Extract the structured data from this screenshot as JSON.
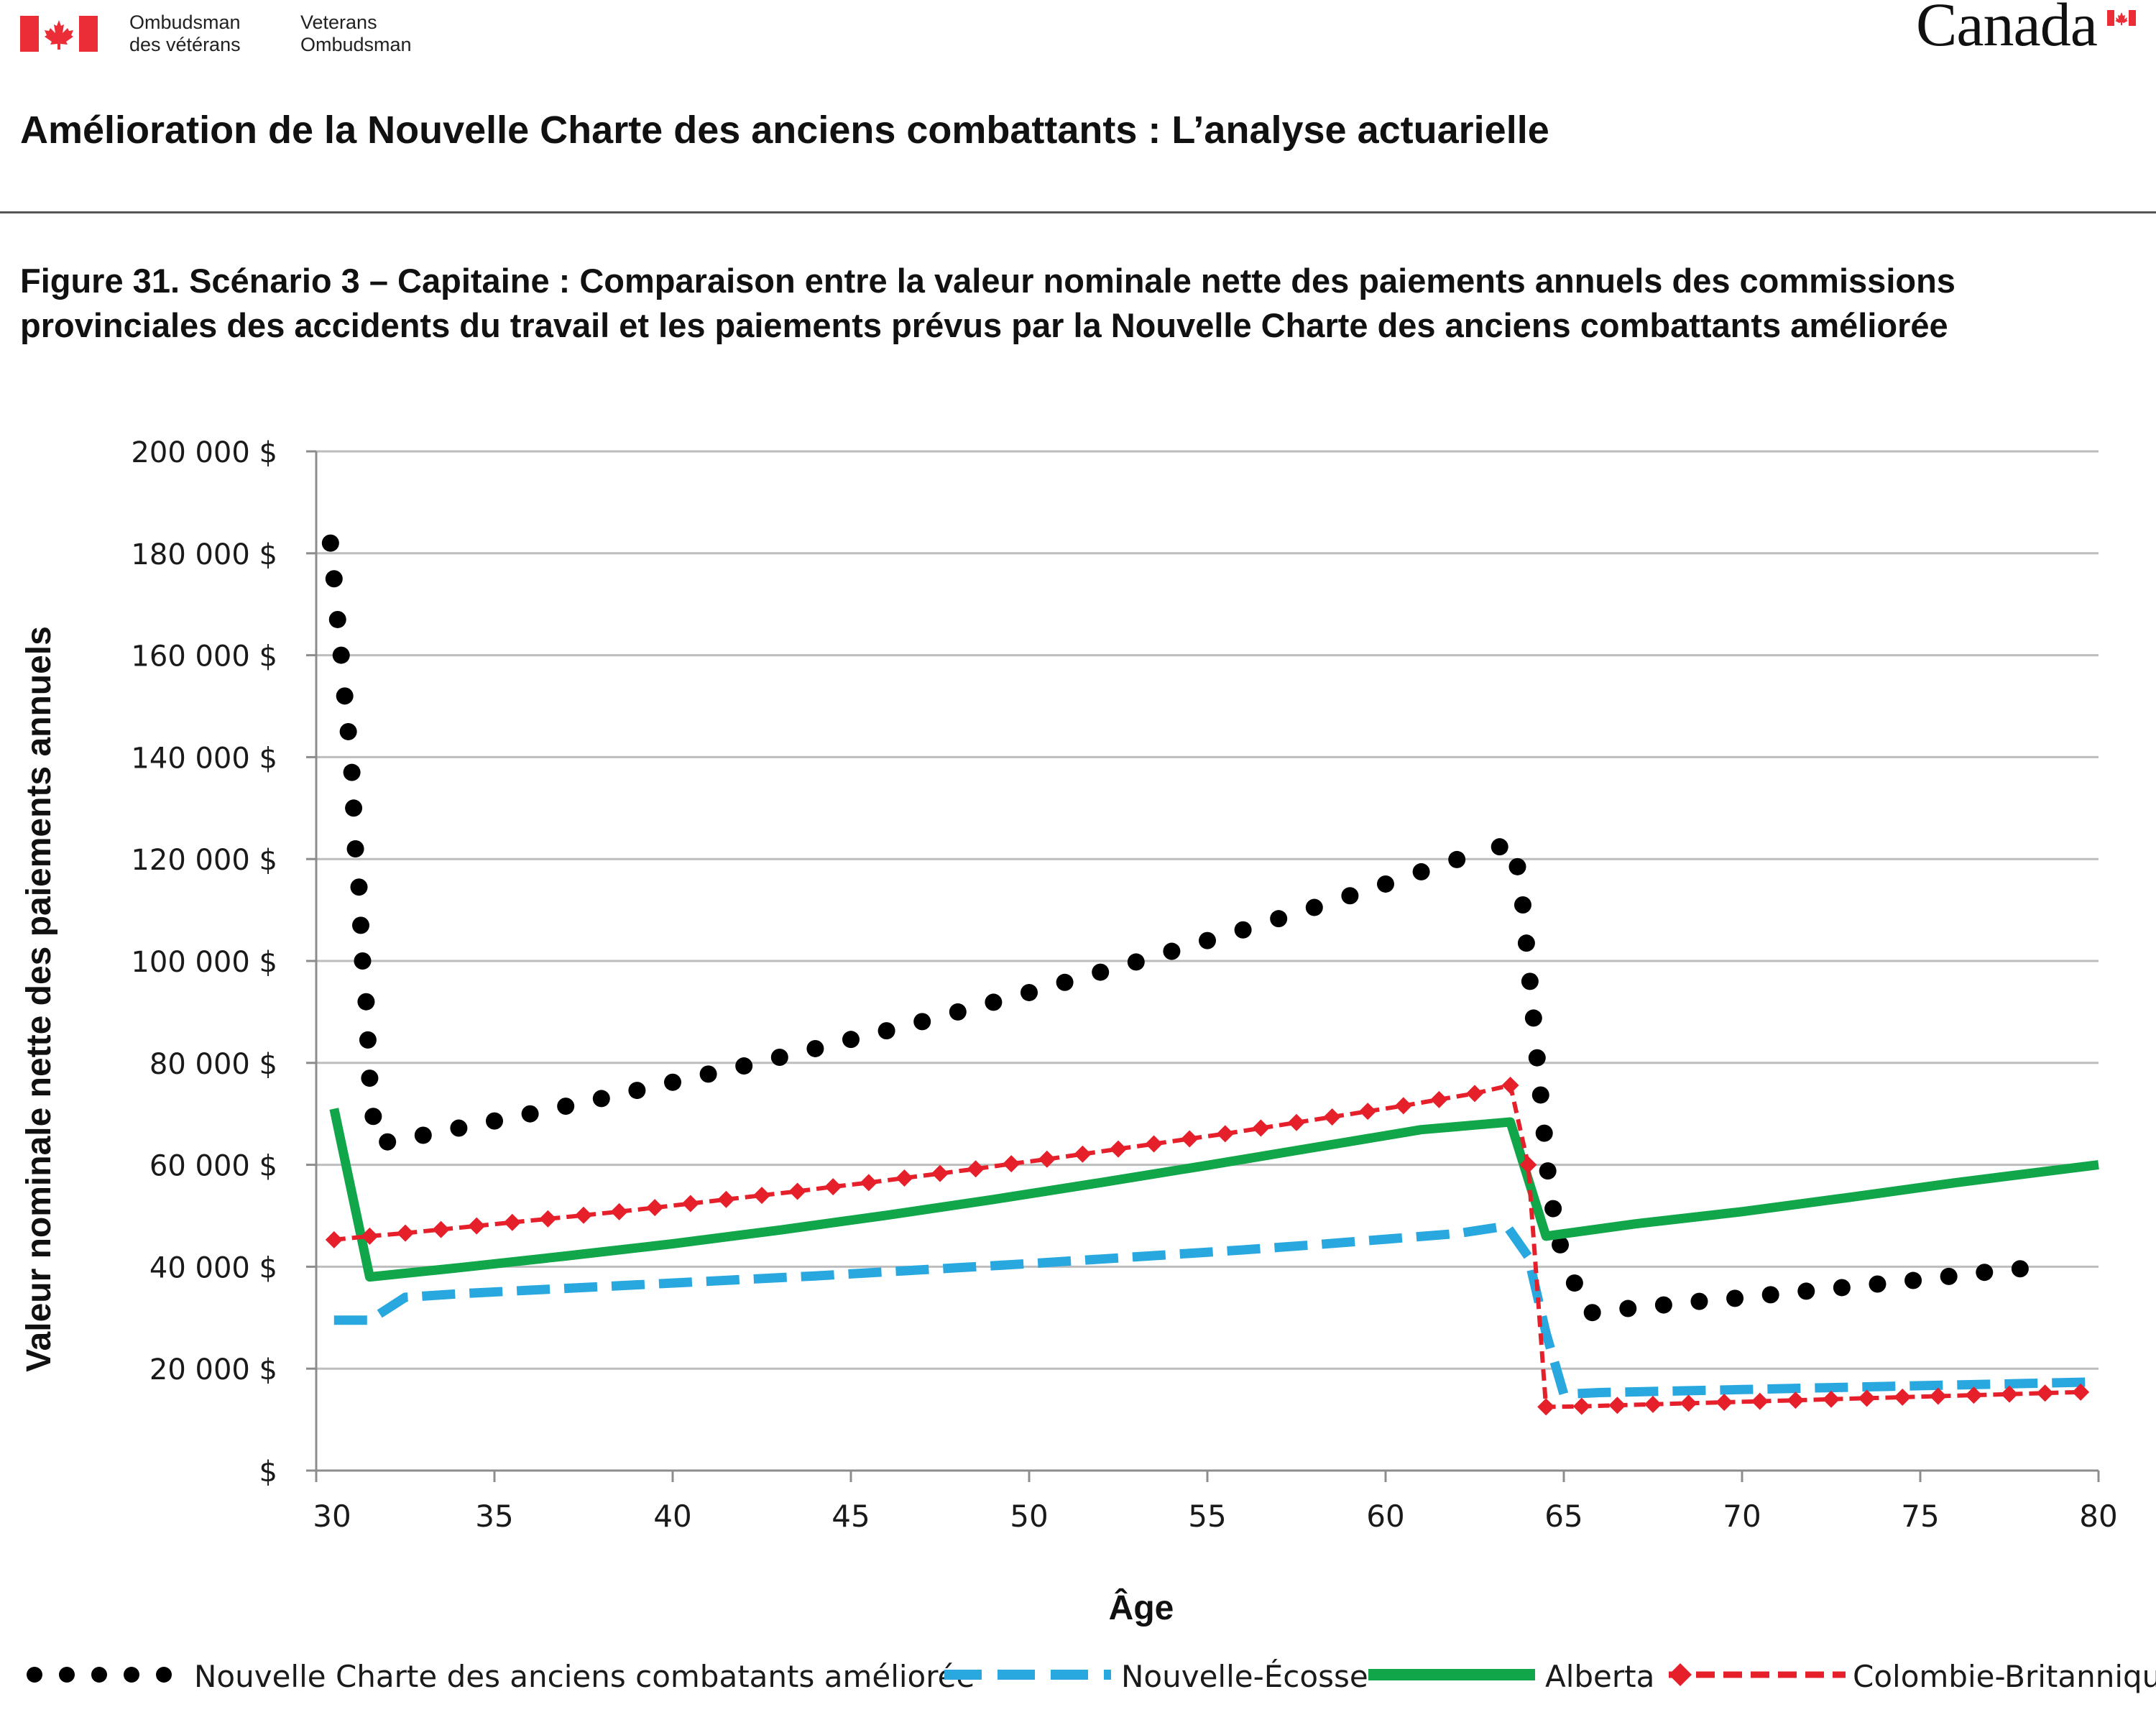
{
  "header": {
    "dept_fr_line1": "Ombudsman",
    "dept_fr_line2": "des vétérans",
    "dept_en_line1": "Veterans",
    "dept_en_line2": "Ombudsman",
    "wordmark": "Canada"
  },
  "document_title": "Amélioration de la Nouvelle Charte des anciens combattants : L’analyse actuarielle",
  "figure_caption": "Figure 31. Scénario 3 – Capitaine : Comparaison entre la valeur nominale nette des paiements annuels des commissions provinciales des accidents du travail et les paiements prévus par la Nouvelle Charte des anciens combattants améliorée",
  "colors": {
    "flag_red": "#eb2d37",
    "grid": "#bdbdbd",
    "axis": "#8c8c8c"
  },
  "chart_data": {
    "type": "line",
    "xlabel": "Âge",
    "ylabel": "Valeur nominale nette des paiements annuels",
    "xlim": [
      30,
      80
    ],
    "ylim": [
      0,
      200000
    ],
    "x_ticks": [
      30,
      35,
      40,
      45,
      50,
      55,
      60,
      65,
      70,
      75,
      80
    ],
    "x_tick_labels": [
      "30",
      "35",
      "40",
      "45",
      "50",
      "55",
      "60",
      "65",
      "70",
      "75",
      "80"
    ],
    "y_ticks": [
      0,
      20000,
      40000,
      60000,
      80000,
      100000,
      120000,
      140000,
      160000,
      180000,
      200000
    ],
    "y_tick_labels": [
      "$",
      "20 000 $",
      "40 000 $",
      "60 000 $",
      "80 000 $",
      "100 000 $",
      "120 000 $",
      "140 000 $",
      "160 000 $",
      "180 000 $",
      "200 000 $"
    ],
    "grid": "horizontal",
    "legend_position": "bottom",
    "series": [
      {
        "name": "Nouvelle Charte des anciens combatants améliorée",
        "color": "#000000",
        "style": "dotted",
        "points": [
          [
            30.4,
            182000
          ],
          [
            30.5,
            175000
          ],
          [
            30.6,
            167000
          ],
          [
            30.7,
            160000
          ],
          [
            30.8,
            152000
          ],
          [
            30.9,
            145000
          ],
          [
            31.0,
            137000
          ],
          [
            31.05,
            130000
          ],
          [
            31.1,
            122000
          ],
          [
            31.2,
            114500
          ],
          [
            31.25,
            107000
          ],
          [
            31.3,
            100000
          ],
          [
            31.4,
            92000
          ],
          [
            31.45,
            84500
          ],
          [
            31.5,
            77000
          ],
          [
            31.6,
            69500
          ],
          [
            32.0,
            64500
          ],
          [
            33,
            65800
          ],
          [
            34,
            67200
          ],
          [
            35,
            68600
          ],
          [
            36,
            70000
          ],
          [
            37,
            71500
          ],
          [
            38,
            73000
          ],
          [
            39,
            74600
          ],
          [
            40,
            76200
          ],
          [
            41,
            77800
          ],
          [
            42,
            79400
          ],
          [
            43,
            81100
          ],
          [
            44,
            82800
          ],
          [
            45,
            84600
          ],
          [
            46,
            86300
          ],
          [
            47,
            88100
          ],
          [
            48,
            90000
          ],
          [
            49,
            91900
          ],
          [
            50,
            93800
          ],
          [
            51,
            95800
          ],
          [
            52,
            97800
          ],
          [
            53,
            99800
          ],
          [
            54,
            101900
          ],
          [
            55,
            104000
          ],
          [
            56,
            106100
          ],
          [
            57,
            108300
          ],
          [
            58,
            110500
          ],
          [
            59,
            112800
          ],
          [
            60,
            115100
          ],
          [
            61,
            117500
          ],
          [
            62,
            119900
          ],
          [
            63.2,
            122400
          ],
          [
            63.7,
            118500
          ],
          [
            63.85,
            111000
          ],
          [
            63.95,
            103500
          ],
          [
            64.05,
            96000
          ],
          [
            64.15,
            88800
          ],
          [
            64.25,
            81000
          ],
          [
            64.35,
            73700
          ],
          [
            64.45,
            66200
          ],
          [
            64.55,
            58800
          ],
          [
            64.7,
            51400
          ],
          [
            64.9,
            44300
          ],
          [
            65.3,
            36800
          ],
          [
            65.8,
            31000
          ],
          [
            66.8,
            31800
          ],
          [
            67.8,
            32500
          ],
          [
            68.8,
            33200
          ],
          [
            69.8,
            33800
          ],
          [
            70.8,
            34500
          ],
          [
            71.8,
            35200
          ],
          [
            72.8,
            35900
          ],
          [
            73.8,
            36600
          ],
          [
            74.8,
            37300
          ],
          [
            75.8,
            38100
          ],
          [
            76.8,
            38900
          ],
          [
            77.8,
            39600
          ]
        ]
      },
      {
        "name": "Nouvelle-Écosse",
        "color": "#29a8e0",
        "style": "dashed",
        "points": [
          [
            30.5,
            29500
          ],
          [
            31.5,
            29500
          ],
          [
            32.5,
            34000
          ],
          [
            34,
            34700
          ],
          [
            36,
            35400
          ],
          [
            38,
            36100
          ],
          [
            40,
            36800
          ],
          [
            42,
            37500
          ],
          [
            44,
            38200
          ],
          [
            46,
            39000
          ],
          [
            48,
            39800
          ],
          [
            50,
            40600
          ],
          [
            52,
            41500
          ],
          [
            54,
            42400
          ],
          [
            56,
            43300
          ],
          [
            58,
            44300
          ],
          [
            60,
            45400
          ],
          [
            62,
            46500
          ],
          [
            63.4,
            48000
          ],
          [
            64.0,
            42000
          ],
          [
            64.5,
            27000
          ],
          [
            65,
            15000
          ],
          [
            66,
            15300
          ],
          [
            68,
            15600
          ],
          [
            70,
            15900
          ],
          [
            72,
            16200
          ],
          [
            74,
            16500
          ],
          [
            76,
            16800
          ],
          [
            78,
            17100
          ],
          [
            80,
            17400
          ]
        ]
      },
      {
        "name": "Alberta",
        "color": "#12a64a",
        "style": "solid",
        "points": [
          [
            30.5,
            71000
          ],
          [
            31.5,
            38000
          ],
          [
            34,
            39800
          ],
          [
            37,
            42100
          ],
          [
            40,
            44500
          ],
          [
            43,
            47200
          ],
          [
            46,
            50100
          ],
          [
            49,
            53200
          ],
          [
            52,
            56500
          ],
          [
            55,
            59900
          ],
          [
            58,
            63400
          ],
          [
            61,
            66900
          ],
          [
            63.5,
            68400
          ],
          [
            64.5,
            46000
          ],
          [
            67,
            48400
          ],
          [
            70,
            50800
          ],
          [
            73,
            53600
          ],
          [
            76,
            56500
          ],
          [
            80,
            60000
          ]
        ]
      },
      {
        "name": "Colombie-Britannique",
        "color": "#e5202a",
        "style": "dashed-diamond",
        "points": [
          [
            30.5,
            45300
          ],
          [
            31.5,
            46000
          ],
          [
            32.5,
            46600
          ],
          [
            33.5,
            47300
          ],
          [
            34.5,
            48000
          ],
          [
            35.5,
            48700
          ],
          [
            36.5,
            49400
          ],
          [
            37.5,
            50100
          ],
          [
            38.5,
            50800
          ],
          [
            39.5,
            51600
          ],
          [
            40.5,
            52400
          ],
          [
            41.5,
            53200
          ],
          [
            42.5,
            54000
          ],
          [
            43.5,
            54800
          ],
          [
            44.5,
            55700
          ],
          [
            45.5,
            56500
          ],
          [
            46.5,
            57400
          ],
          [
            47.5,
            58300
          ],
          [
            48.5,
            59200
          ],
          [
            49.5,
            60200
          ],
          [
            50.5,
            61100
          ],
          [
            51.5,
            62100
          ],
          [
            52.5,
            63100
          ],
          [
            53.5,
            64100
          ],
          [
            54.5,
            65100
          ],
          [
            55.5,
            66100
          ],
          [
            56.5,
            67200
          ],
          [
            57.5,
            68300
          ],
          [
            58.5,
            69400
          ],
          [
            59.5,
            70500
          ],
          [
            60.5,
            71600
          ],
          [
            61.5,
            72800
          ],
          [
            62.5,
            74000
          ],
          [
            63.5,
            75600
          ],
          [
            64.0,
            60000
          ],
          [
            64.5,
            12500
          ],
          [
            65.5,
            12600
          ],
          [
            66.5,
            12800
          ],
          [
            67.5,
            13000
          ],
          [
            68.5,
            13200
          ],
          [
            69.5,
            13400
          ],
          [
            70.5,
            13600
          ],
          [
            71.5,
            13800
          ],
          [
            72.5,
            14000
          ],
          [
            73.5,
            14200
          ],
          [
            74.5,
            14400
          ],
          [
            75.5,
            14600
          ],
          [
            76.5,
            14800
          ],
          [
            77.5,
            15000
          ],
          [
            78.5,
            15200
          ],
          [
            79.5,
            15400
          ]
        ]
      }
    ]
  }
}
